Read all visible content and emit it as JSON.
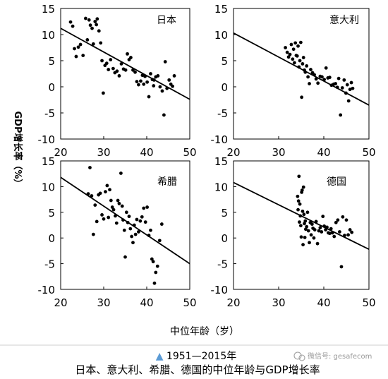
{
  "figure": {
    "ylabel": "GDP增长率（%）",
    "xlabel": "中位年龄（岁）",
    "caption_line1": "▲ 1951—2015年",
    "caption_line2": "日本、意大利、希腊、德国的中位年龄与GDP增长率",
    "watermark": "微信号: gesafecom",
    "colors": {
      "points": "#000000",
      "fit_line": "#000000",
      "caption_marker": "#5b9bd5",
      "watermark": "#9a9a9a"
    }
  },
  "chart_data": [
    {
      "type": "scatter",
      "title": "日本",
      "xlim": [
        20,
        50
      ],
      "ylim": [
        -10,
        15
      ],
      "xticks": [
        20,
        30,
        40,
        50
      ],
      "yticks": [
        -10,
        -5,
        0,
        5,
        10,
        15
      ],
      "grid": false,
      "fit_line": {
        "x": [
          20,
          50
        ],
        "y": [
          11.2,
          -2.4
        ]
      },
      "points": [
        [
          22.3,
          12.4
        ],
        [
          22.8,
          11.6
        ],
        [
          23.2,
          7.3
        ],
        [
          23.6,
          5.8
        ],
        [
          24.1,
          7.6
        ],
        [
          24.6,
          8.1
        ],
        [
          25.2,
          6.0
        ],
        [
          25.8,
          13.1
        ],
        [
          26.2,
          9.0
        ],
        [
          26.6,
          12.8
        ],
        [
          26.9,
          11.8
        ],
        [
          27.3,
          11.2
        ],
        [
          27.6,
          8.2
        ],
        [
          28.0,
          12.5
        ],
        [
          28.3,
          11.9
        ],
        [
          28.5,
          13.0
        ],
        [
          28.9,
          10.7
        ],
        [
          29.3,
          8.4
        ],
        [
          29.6,
          5.0
        ],
        [
          29.9,
          -1.2
        ],
        [
          30.3,
          4.1
        ],
        [
          30.7,
          4.5
        ],
        [
          31.1,
          3.3
        ],
        [
          31.6,
          5.2
        ],
        [
          32.2,
          3.5
        ],
        [
          32.6,
          2.7
        ],
        [
          33.1,
          3.0
        ],
        [
          33.6,
          2.1
        ],
        [
          34.1,
          4.4
        ],
        [
          34.6,
          3.4
        ],
        [
          35.1,
          3.2
        ],
        [
          35.5,
          6.3
        ],
        [
          35.9,
          5.2
        ],
        [
          36.3,
          5.6
        ],
        [
          36.8,
          3.2
        ],
        [
          37.3,
          2.8
        ],
        [
          37.7,
          1.0
        ],
        [
          38.1,
          0.4
        ],
        [
          38.6,
          1.1
        ],
        [
          39.0,
          2.2
        ],
        [
          39.6,
          2.0
        ],
        [
          40.1,
          0.9
        ],
        [
          40.5,
          -1.9
        ],
        [
          40.9,
          2.5
        ],
        [
          41.3,
          1.4
        ],
        [
          41.7,
          1.3
        ],
        [
          42.1,
          1.9
        ],
        [
          42.6,
          2.1
        ],
        [
          43.1,
          0.0
        ],
        [
          43.6,
          -0.8
        ],
        [
          44.0,
          -5.4
        ],
        [
          44.3,
          4.8
        ],
        [
          44.7,
          -0.3
        ],
        [
          45.2,
          1.3
        ],
        [
          45.6,
          0.5
        ],
        [
          46.0,
          0.1
        ],
        [
          46.4,
          2.1
        ],
        [
          41.6,
          0.2
        ],
        [
          39.3,
          0.5
        ]
      ]
    },
    {
      "type": "scatter",
      "title": "意大利",
      "xlim": [
        20,
        50
      ],
      "ylim": [
        -10,
        15
      ],
      "xticks": [
        20,
        30,
        40,
        50
      ],
      "yticks": [
        -10,
        -5,
        0,
        5,
        10,
        15
      ],
      "grid": false,
      "fit_line": {
        "x": [
          20,
          50
        ],
        "y": [
          10.3,
          -3.5
        ]
      },
      "points": [
        [
          31.5,
          7.5
        ],
        [
          31.9,
          6.6
        ],
        [
          32.2,
          5.7
        ],
        [
          32.5,
          6.2
        ],
        [
          32.8,
          8.1
        ],
        [
          33.1,
          5.3
        ],
        [
          33.3,
          7.2
        ],
        [
          33.5,
          4.6
        ],
        [
          33.7,
          8.4
        ],
        [
          33.9,
          6.0
        ],
        [
          34.1,
          5.9
        ],
        [
          34.3,
          7.8
        ],
        [
          34.5,
          3.8
        ],
        [
          34.7,
          5.0
        ],
        [
          34.9,
          8.5
        ],
        [
          35.1,
          -2.0
        ],
        [
          35.3,
          4.4
        ],
        [
          35.5,
          5.6
        ],
        [
          35.7,
          3.2
        ],
        [
          35.9,
          2.8
        ],
        [
          36.2,
          4.0
        ],
        [
          36.5,
          1.9
        ],
        [
          36.8,
          0.6
        ],
        [
          37.1,
          3.3
        ],
        [
          37.5,
          2.7
        ],
        [
          37.9,
          2.3
        ],
        [
          38.3,
          1.5
        ],
        [
          38.7,
          0.7
        ],
        [
          39.2,
          2.0
        ],
        [
          39.6,
          1.9
        ],
        [
          40.1,
          1.4
        ],
        [
          40.5,
          3.6
        ],
        [
          40.9,
          1.7
        ],
        [
          41.3,
          1.8
        ],
        [
          41.7,
          0.3
        ],
        [
          42.2,
          0.5
        ],
        [
          42.6,
          0.6
        ],
        [
          43.0,
          -0.1
        ],
        [
          43.3,
          1.6
        ],
        [
          43.7,
          -5.4
        ],
        [
          44.1,
          -0.2
        ],
        [
          44.5,
          1.3
        ],
        [
          44.9,
          -1.2
        ],
        [
          45.2,
          0.4
        ],
        [
          45.5,
          -2.7
        ],
        [
          45.8,
          -0.5
        ],
        [
          46.1,
          0.8
        ],
        [
          46.4,
          -0.3
        ]
      ]
    },
    {
      "type": "scatter",
      "title": "希腊",
      "xlim": [
        20,
        50
      ],
      "ylim": [
        -10,
        15
      ],
      "xticks": [
        20,
        30,
        40,
        50
      ],
      "yticks": [
        -10,
        -5,
        0,
        5,
        10,
        15
      ],
      "grid": false,
      "fit_line": {
        "x": [
          20,
          50
        ],
        "y": [
          11.8,
          -5.0
        ]
      },
      "points": [
        [
          26.4,
          8.6
        ],
        [
          26.8,
          13.7
        ],
        [
          27.2,
          8.2
        ],
        [
          27.6,
          0.7
        ],
        [
          28.0,
          6.4
        ],
        [
          28.4,
          3.2
        ],
        [
          28.8,
          8.4
        ],
        [
          29.2,
          8.7
        ],
        [
          29.6,
          4.5
        ],
        [
          30.0,
          3.7
        ],
        [
          30.4,
          9.0
        ],
        [
          30.8,
          10.2
        ],
        [
          31.1,
          4.0
        ],
        [
          31.4,
          9.4
        ],
        [
          31.7,
          7.3
        ],
        [
          32.0,
          6.0
        ],
        [
          32.3,
          5.5
        ],
        [
          32.7,
          4.3
        ],
        [
          33.0,
          2.9
        ],
        [
          33.3,
          7.3
        ],
        [
          33.6,
          6.7
        ],
        [
          34.0,
          12.6
        ],
        [
          34.3,
          6.2
        ],
        [
          34.5,
          3.5
        ],
        [
          34.8,
          1.5
        ],
        [
          35.0,
          -3.7
        ],
        [
          35.3,
          5.0
        ],
        [
          35.6,
          3.0
        ],
        [
          35.9,
          4.2
        ],
        [
          36.2,
          1.8
        ],
        [
          36.5,
          0.3
        ],
        [
          36.8,
          -0.9
        ],
        [
          37.1,
          2.5
        ],
        [
          37.4,
          0.7
        ],
        [
          37.7,
          3.6
        ],
        [
          38.1,
          1.2
        ],
        [
          38.5,
          3.3
        ],
        [
          38.9,
          4.1
        ],
        [
          39.3,
          5.8
        ],
        [
          39.7,
          3.1
        ],
        [
          40.1,
          6.0
        ],
        [
          40.5,
          0.5
        ],
        [
          40.9,
          1.5
        ],
        [
          41.2,
          -4.1
        ],
        [
          41.5,
          -4.6
        ],
        [
          41.8,
          -8.8
        ],
        [
          42.1,
          -6.7
        ],
        [
          42.5,
          -5.5
        ],
        [
          43.0,
          -0.5
        ],
        [
          43.5,
          2.7
        ]
      ]
    },
    {
      "type": "scatter",
      "title": "德国",
      "xlim": [
        20,
        50
      ],
      "ylim": [
        -10,
        15
      ],
      "xticks": [
        20,
        30,
        40,
        50
      ],
      "yticks": [
        -10,
        -5,
        0,
        5,
        10,
        15
      ],
      "grid": false,
      "fit_line": {
        "x": [
          20,
          50
        ],
        "y": [
          10.8,
          -2.2
        ]
      },
      "points": [
        [
          34.2,
          8.1
        ],
        [
          34.3,
          5.5
        ],
        [
          34.4,
          7.2
        ],
        [
          34.5,
          12.0
        ],
        [
          34.6,
          3.1
        ],
        [
          34.7,
          6.6
        ],
        [
          34.8,
          4.3
        ],
        [
          34.9,
          2.4
        ],
        [
          35.0,
          0.2
        ],
        [
          35.1,
          8.9
        ],
        [
          35.2,
          9.3
        ],
        [
          35.3,
          5.2
        ],
        [
          35.4,
          -1.3
        ],
        [
          35.5,
          9.9
        ],
        [
          35.6,
          4.6
        ],
        [
          35.7,
          2.8
        ],
        [
          35.8,
          0.1
        ],
        [
          35.9,
          3.3
        ],
        [
          36.0,
          1.7
        ],
        [
          36.2,
          2.2
        ],
        [
          36.4,
          5.0
        ],
        [
          36.6,
          1.4
        ],
        [
          36.8,
          -0.9
        ],
        [
          37.0,
          3.0
        ],
        [
          37.2,
          0.6
        ],
        [
          37.4,
          2.7
        ],
        [
          37.6,
          1.9
        ],
        [
          37.8,
          0.0
        ],
        [
          38.0,
          1.6
        ],
        [
          38.3,
          3.2
        ],
        [
          38.6,
          -1.1
        ],
        [
          38.9,
          1.4
        ],
        [
          39.2,
          2.0
        ],
        [
          39.5,
          1.2
        ],
        [
          39.8,
          4.2
        ],
        [
          40.1,
          2.3
        ],
        [
          40.4,
          1.6
        ],
        [
          40.7,
          2.1
        ],
        [
          41.0,
          1.0
        ],
        [
          41.3,
          0.9
        ],
        [
          41.6,
          1.8
        ],
        [
          41.9,
          1.0
        ],
        [
          42.3,
          0.3
        ],
        [
          42.7,
          3.0
        ],
        [
          43.1,
          3.5
        ],
        [
          43.5,
          1.2
        ],
        [
          43.9,
          -5.6
        ],
        [
          44.2,
          4.1
        ],
        [
          44.6,
          0.5
        ],
        [
          45.0,
          3.5
        ],
        [
          45.4,
          0.6
        ],
        [
          45.8,
          1.6
        ],
        [
          46.2,
          1.1
        ]
      ]
    }
  ]
}
